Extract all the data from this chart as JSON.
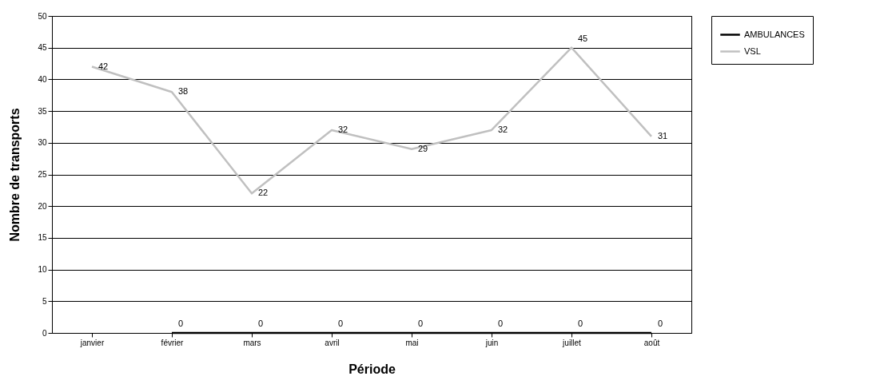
{
  "chart_data": {
    "type": "line",
    "xlabel": "Période",
    "ylabel": "Nombre de transports",
    "categories": [
      "janvier",
      "février",
      "mars",
      "avril",
      "mai",
      "juin",
      "juillet",
      "août"
    ],
    "series": [
      {
        "name": "AMBULANCES",
        "color": "#000000",
        "values": [
          null,
          0,
          0,
          0,
          0,
          0,
          0,
          0
        ]
      },
      {
        "name": "VSL",
        "color": "#c0c0c0",
        "values": [
          42,
          38,
          22,
          32,
          29,
          32,
          45,
          31
        ]
      }
    ],
    "ylim": [
      0,
      50
    ],
    "yticks": [
      0,
      5,
      10,
      15,
      20,
      25,
      30,
      35,
      40,
      45,
      50
    ],
    "grid": "y",
    "legend": "right",
    "data_labels": true,
    "marker": "none",
    "line_style": "solid"
  }
}
